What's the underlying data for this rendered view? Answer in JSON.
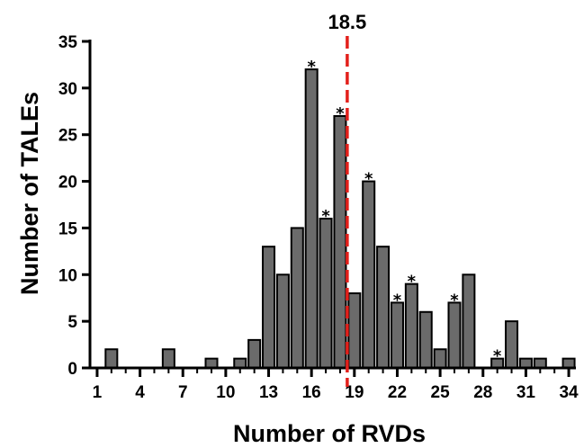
{
  "chart_data": {
    "type": "bar",
    "xlabel": "Number of RVDs",
    "ylabel": "Number of TALEs",
    "x": [
      2,
      6,
      9,
      11,
      12,
      13,
      14,
      15,
      16,
      17,
      18,
      19,
      20,
      21,
      22,
      23,
      24,
      25,
      26,
      27,
      29,
      30,
      31,
      32,
      34
    ],
    "values": [
      2,
      2,
      1,
      1,
      3,
      13,
      10,
      15,
      32,
      16,
      27,
      8,
      20,
      13,
      7,
      9,
      6,
      2,
      7,
      10,
      1,
      5,
      1,
      1,
      1
    ],
    "starred": [
      16,
      17,
      18,
      20,
      22,
      23,
      26,
      29
    ],
    "star_symbol": "*",
    "xticks": [
      1,
      4,
      7,
      10,
      13,
      16,
      19,
      22,
      25,
      28,
      31,
      34
    ],
    "yticks": [
      0,
      5,
      10,
      15,
      20,
      25,
      30,
      35
    ],
    "xlim": [
      0.5,
      34.5
    ],
    "ylim": [
      0,
      35
    ],
    "reference_line": {
      "x": 18.5,
      "label": "18.5",
      "color": "#e3201b",
      "style": "dashed"
    },
    "bar_color": "#6b6b6b",
    "bar_edge_color": "#000000",
    "grid": false
  }
}
